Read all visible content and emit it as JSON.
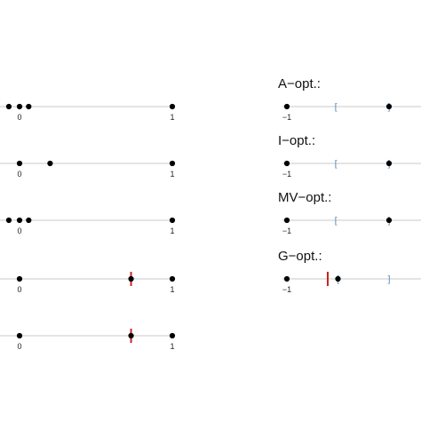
{
  "colors": {
    "axis": "#c8c8c8",
    "point": "#000000",
    "marker": "#cc2222",
    "bracket": "#4a7fb5"
  },
  "chart_data": [
    {
      "type": "scatter",
      "column": "left",
      "title": "",
      "xlim": [
        -0.15,
        1.0
      ],
      "ticks": [
        {
          "value": 0,
          "label": "0"
        },
        {
          "value": 1,
          "label": "1"
        }
      ],
      "points": [
        -0.07,
        0.0,
        0.06,
        1.0
      ],
      "markers": [],
      "brackets": []
    },
    {
      "type": "scatter",
      "column": "left",
      "title": "",
      "xlim": [
        -0.15,
        1.0
      ],
      "ticks": [
        {
          "value": 0,
          "label": "0"
        },
        {
          "value": 1,
          "label": "1"
        }
      ],
      "points": [
        0.0,
        0.2,
        1.0
      ],
      "markers": [],
      "brackets": []
    },
    {
      "type": "scatter",
      "column": "left",
      "title": "",
      "xlim": [
        -0.15,
        1.0
      ],
      "ticks": [
        {
          "value": 0,
          "label": "0"
        },
        {
          "value": 1,
          "label": "1"
        }
      ],
      "points": [
        -0.07,
        0.0,
        0.06,
        1.0
      ],
      "markers": [],
      "brackets": []
    },
    {
      "type": "scatter",
      "column": "left",
      "title": "",
      "xlim": [
        -0.15,
        1.0
      ],
      "ticks": [
        {
          "value": 0,
          "label": "0"
        },
        {
          "value": 1,
          "label": "1"
        }
      ],
      "points": [
        0.0,
        0.73,
        1.0
      ],
      "markers": [
        0.73
      ],
      "brackets": []
    },
    {
      "type": "scatter",
      "column": "left",
      "title": "",
      "xlim": [
        -0.15,
        1.0
      ],
      "ticks": [
        {
          "value": 0,
          "label": "0"
        },
        {
          "value": 1,
          "label": "1"
        }
      ],
      "points": [
        0.0,
        0.73,
        1.0
      ],
      "markers": [
        0.73
      ],
      "brackets": []
    },
    {
      "type": "scatter",
      "column": "right",
      "title": "A−opt.:",
      "xlim": [
        -1,
        1
      ],
      "ticks": [
        {
          "value": -1,
          "label": "−1"
        }
      ],
      "points": [
        -1.0,
        0.0
      ],
      "markers": [],
      "brackets": [
        {
          "value": -0.52,
          "glyph": "["
        },
        {
          "value": 0.0,
          "glyph": "]"
        }
      ]
    },
    {
      "type": "scatter",
      "column": "right",
      "title": "I−opt.:",
      "xlim": [
        -1,
        1
      ],
      "ticks": [
        {
          "value": -1,
          "label": "−1"
        }
      ],
      "points": [
        -1.0,
        0.0
      ],
      "markers": [],
      "brackets": [
        {
          "value": -0.52,
          "glyph": "["
        },
        {
          "value": 0.0,
          "glyph": "]"
        }
      ]
    },
    {
      "type": "scatter",
      "column": "right",
      "title": "MV−opt.:",
      "xlim": [
        -1,
        1
      ],
      "ticks": [
        {
          "value": -1,
          "label": "−1"
        }
      ],
      "points": [
        -1.0,
        0.0
      ],
      "markers": [],
      "brackets": [
        {
          "value": -0.52,
          "glyph": "["
        },
        {
          "value": 0.0,
          "glyph": "]"
        }
      ]
    },
    {
      "type": "scatter",
      "column": "right",
      "title": "G−opt.:",
      "xlim": [
        -1,
        1
      ],
      "ticks": [
        {
          "value": -1,
          "label": "−1"
        }
      ],
      "points": [
        -1.0,
        -0.5
      ],
      "markers": [
        -0.6
      ],
      "brackets": [
        {
          "value": -0.5,
          "glyph": "["
        },
        {
          "value": 0.0,
          "glyph": "]"
        }
      ]
    }
  ]
}
